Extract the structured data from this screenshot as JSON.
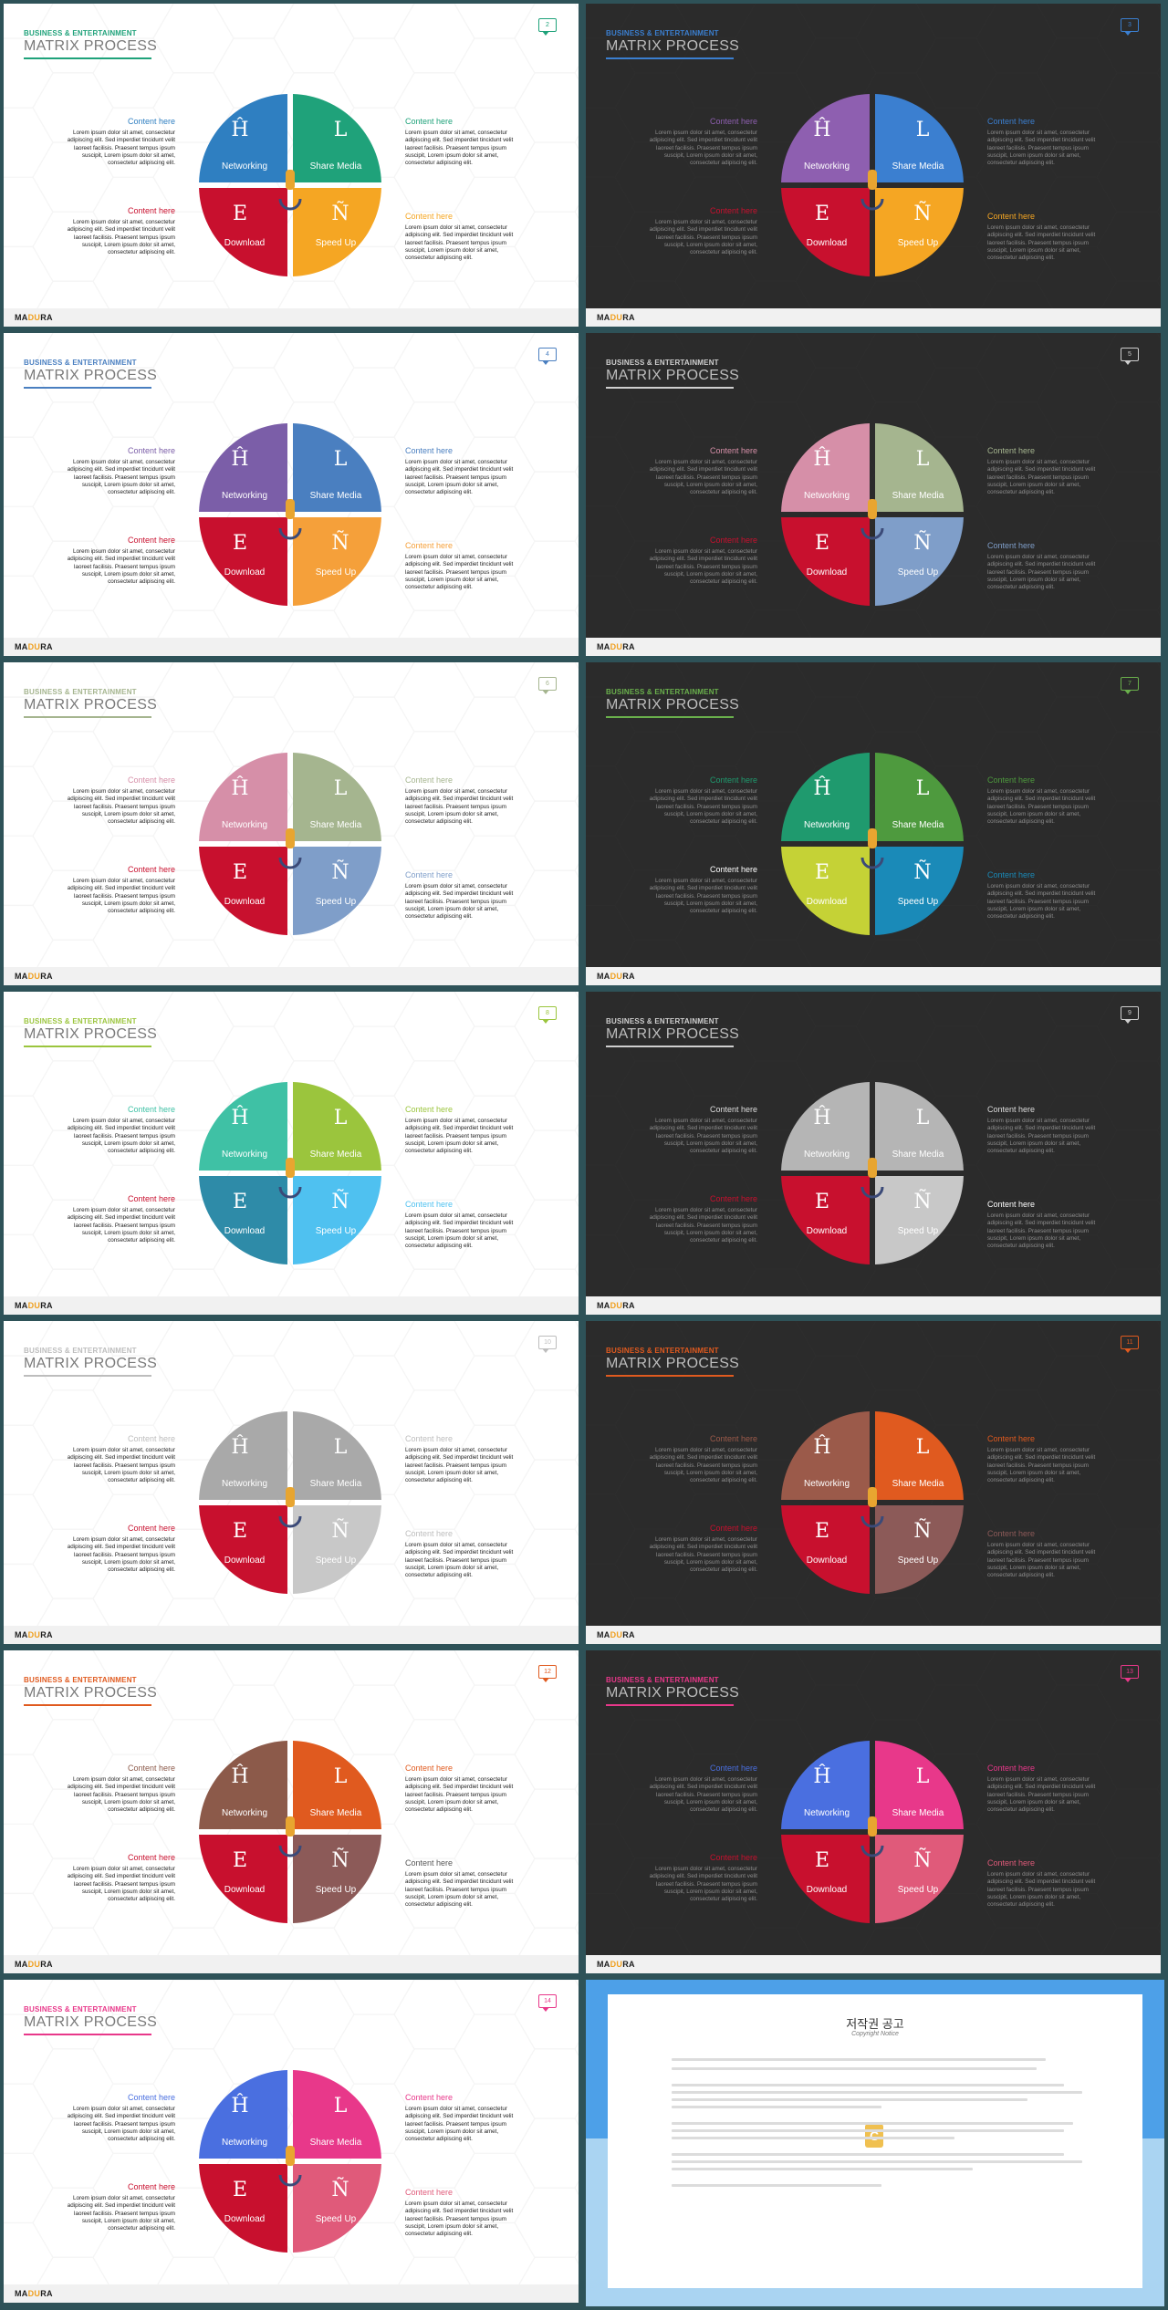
{
  "common": {
    "tag": "BUSINESS & ENTERTAINMENT",
    "title": "MATRIX PROCESS",
    "content_heading": "Content here",
    "content_body": "Lorem ipsum dolor sit amet, consectetur adipiscing elit. Sed imperdiet tincidunt velit laoreet facilisis. Praesent tempus ipsum suscipit, Lorem ipsum dolor sit amet, consectetur adipiscing elit.",
    "brand_prefix": "MA",
    "brand_accent": "DU",
    "brand_suffix": "RA",
    "quadrants": [
      {
        "letter": "Ĥ",
        "label": "Networking"
      },
      {
        "letter": "L",
        "label": "Share Media"
      },
      {
        "letter": "E",
        "label": "Download"
      },
      {
        "letter": "Ñ",
        "label": "Speed Up"
      }
    ]
  },
  "slides": [
    {
      "number": "2",
      "theme": "light",
      "accent": "#1fa27a",
      "colors": [
        "#2f7fc1",
        "#1fa27a",
        "#c8102e",
        "#f5a623"
      ],
      "heads": [
        "#2f7fc1",
        "#1fa27a",
        "#c8102e",
        "#f5a623"
      ]
    },
    {
      "number": "3",
      "theme": "dark",
      "accent": "#3b7fd0",
      "colors": [
        "#8e5fb0",
        "#3b7fd0",
        "#c8102e",
        "#f5a623"
      ],
      "heads": [
        "#8e5fb0",
        "#3b7fd0",
        "#c8102e",
        "#f5a623"
      ]
    },
    {
      "number": "4",
      "theme": "light",
      "accent": "#4a7fc0",
      "colors": [
        "#7b5ea8",
        "#4a7fc0",
        "#c8102e",
        "#f5a03a"
      ],
      "heads": [
        "#7b5ea8",
        "#4a7fc0",
        "#c8102e",
        "#f5a03a"
      ]
    },
    {
      "number": "5",
      "theme": "dark",
      "accent": "#cfcfcf",
      "colors": [
        "#d68fa8",
        "#a5b58f",
        "#c8102e",
        "#7f9ec9"
      ],
      "heads": [
        "#d68fa8",
        "#a5b58f",
        "#c8102e",
        "#7f9ec9"
      ]
    },
    {
      "number": "6",
      "theme": "light",
      "accent": "#a5b58f",
      "colors": [
        "#d68fa8",
        "#a5b58f",
        "#c8102e",
        "#7f9ec9"
      ],
      "heads": [
        "#d68fa8",
        "#a5b58f",
        "#c8102e",
        "#7f9ec9"
      ]
    },
    {
      "number": "7",
      "theme": "dark",
      "accent": "#6ab04c",
      "colors": [
        "#1f9a6e",
        "#4e9a3e",
        "#c5d236",
        "#1a8ab8"
      ],
      "heads": [
        "#1f9a6e",
        "#4e9a3e",
        "#ffffff",
        "#1a8ab8"
      ]
    },
    {
      "number": "8",
      "theme": "light",
      "accent": "#9bc53d",
      "colors": [
        "#3fc1a5",
        "#9bc53d",
        "#2e8ba8",
        "#4fc1f0"
      ],
      "heads": [
        "#3fc1a5",
        "#9bc53d",
        "#c8102e",
        "#4fc1f0"
      ]
    },
    {
      "number": "9",
      "theme": "dark",
      "accent": "#cfcfcf",
      "colors": [
        "#b5b5b5",
        "#b5b5b5",
        "#c8102e",
        "#c8c8c8"
      ],
      "heads": [
        "#dddddd",
        "#dddddd",
        "#c8102e",
        "#ffffff"
      ]
    },
    {
      "number": "10",
      "theme": "light",
      "accent": "#bdbdbd",
      "colors": [
        "#a9a9a9",
        "#a9a9a9",
        "#c8102e",
        "#c8c8c8"
      ],
      "heads": [
        "#bdbdbd",
        "#bdbdbd",
        "#c8102e",
        "#bdbdbd"
      ]
    },
    {
      "number": "11",
      "theme": "dark",
      "accent": "#e05a1f",
      "colors": [
        "#9b5a4a",
        "#e05a1f",
        "#c8102e",
        "#8c5a58"
      ],
      "heads": [
        "#9b5a4a",
        "#e05a1f",
        "#c8102e",
        "#8c5a58"
      ]
    },
    {
      "number": "12",
      "theme": "light",
      "accent": "#e05a1f",
      "colors": [
        "#8c5a4a",
        "#e05a1f",
        "#c8102e",
        "#8c5a58"
      ],
      "heads": [
        "#8c5a4a",
        "#e05a1f",
        "#c8102e",
        "#555555"
      ]
    },
    {
      "number": "13",
      "theme": "dark",
      "accent": "#e8388a",
      "colors": [
        "#4a6fe0",
        "#e8388a",
        "#c8102e",
        "#e05a7a"
      ],
      "heads": [
        "#4a6fe0",
        "#e8388a",
        "#c8102e",
        "#e05a7a"
      ]
    },
    {
      "number": "14",
      "theme": "light",
      "accent": "#e8388a",
      "colors": [
        "#4a6fe0",
        "#e8388a",
        "#c8102e",
        "#e05a7a"
      ],
      "heads": [
        "#4a6fe0",
        "#e8388a",
        "#c8102e",
        "#e05a7a"
      ]
    }
  ],
  "notice": {
    "title": "저작권 공고",
    "subtitle": "Copyright Notice",
    "logo_letter": "C"
  }
}
